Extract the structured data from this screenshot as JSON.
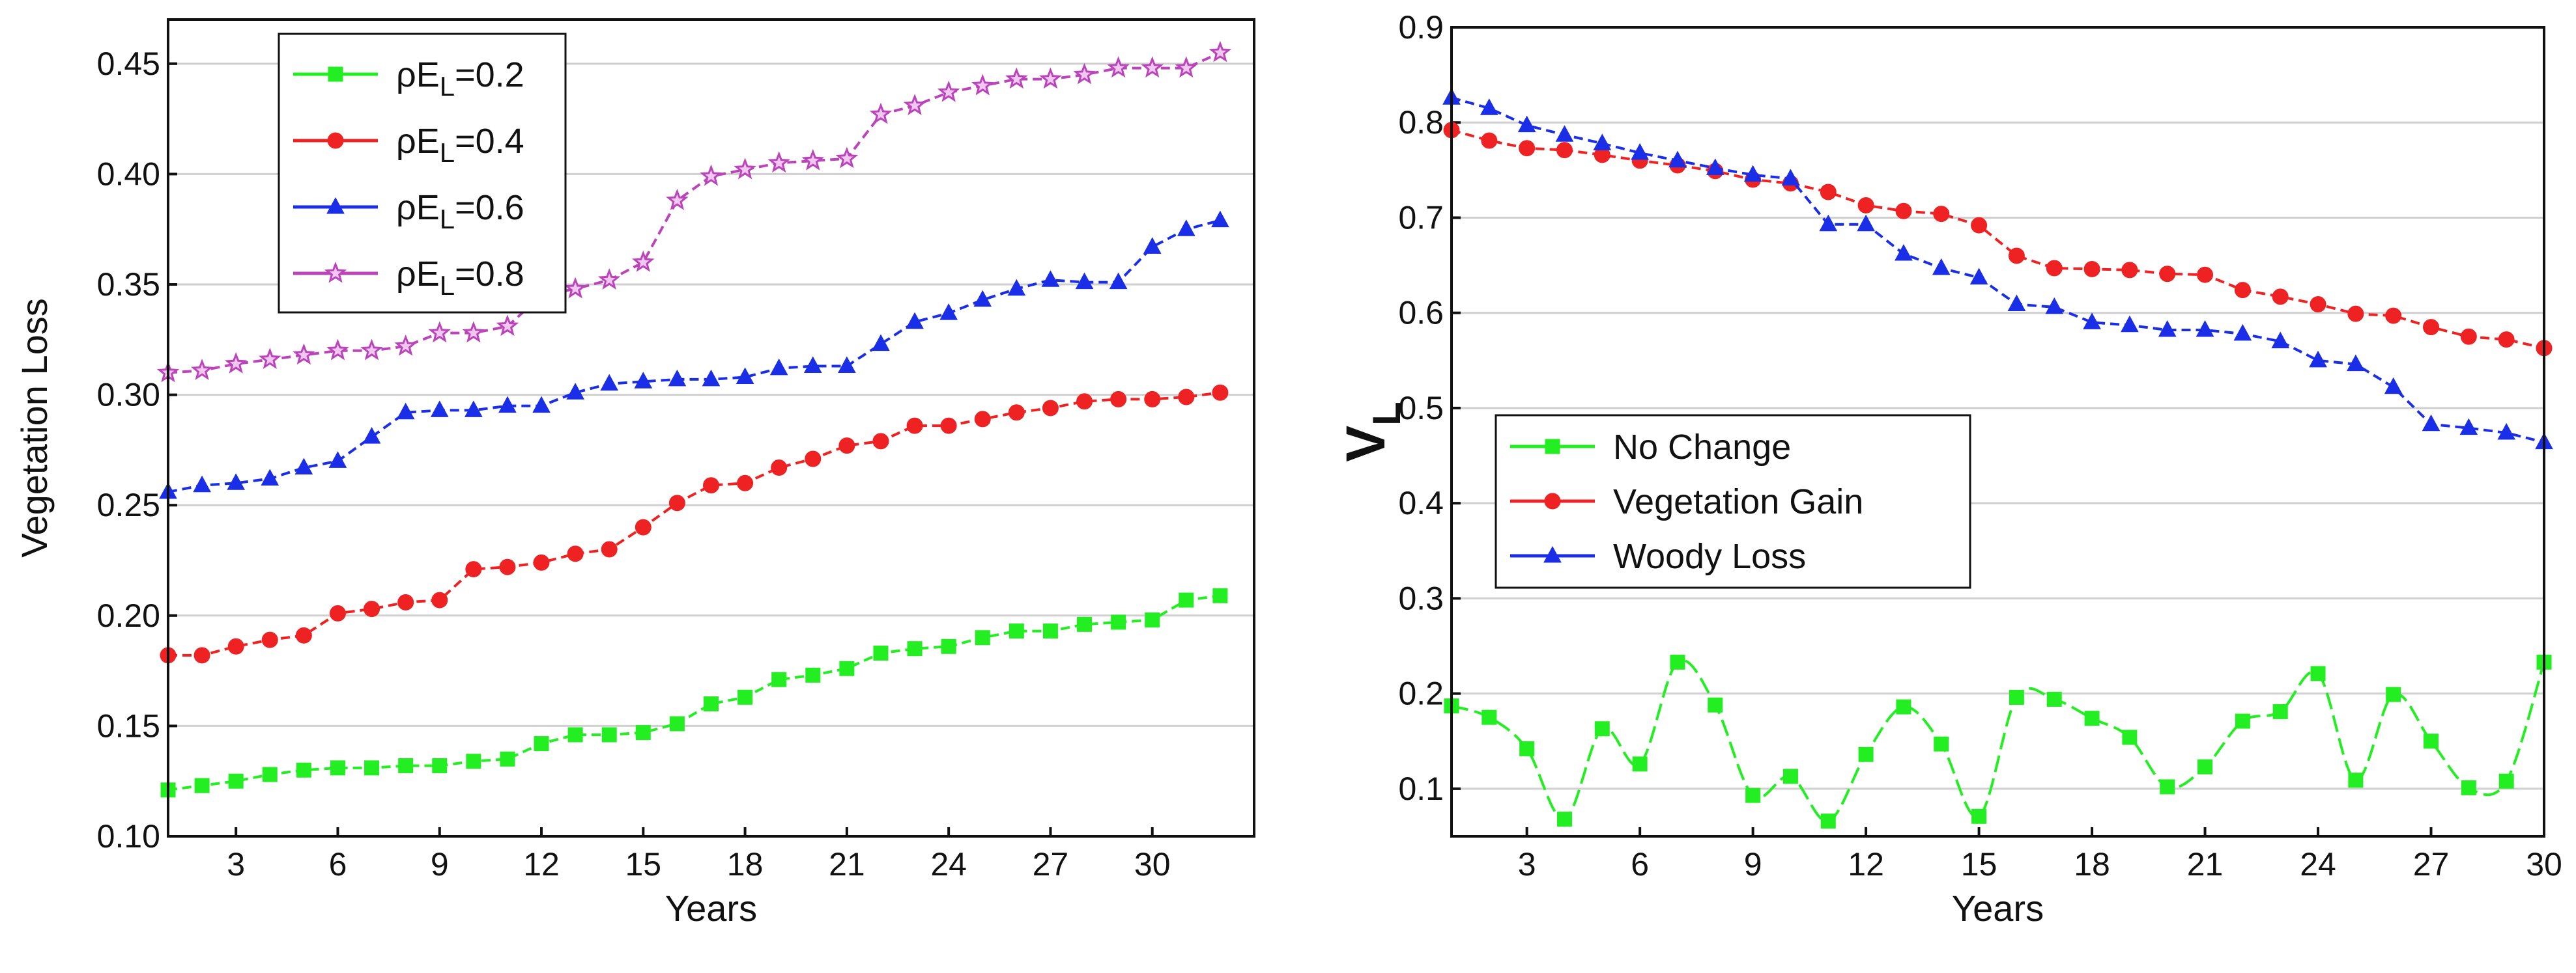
{
  "chart_data": [
    {
      "type": "line",
      "title": "",
      "xlabel": "Years",
      "ylabel": "Vegetation Loss",
      "xlim": [
        1,
        33
      ],
      "ylim": [
        0.1,
        0.47
      ],
      "xticks": [
        3,
        6,
        9,
        12,
        15,
        18,
        21,
        24,
        27,
        30
      ],
      "yticks": [
        0.1,
        0.15,
        0.2,
        0.25,
        0.3,
        0.35,
        0.4,
        0.45
      ],
      "ytick_labels": [
        "0.10",
        "0.15",
        "0.20",
        "0.25",
        "0.30",
        "0.35",
        "0.40",
        "0.45"
      ],
      "grid": true,
      "legend_position": "top-left",
      "x": [
        1,
        2,
        3,
        4,
        5,
        6,
        7,
        8,
        9,
        10,
        11,
        12,
        13,
        14,
        15,
        16,
        17,
        18,
        19,
        20,
        21,
        22,
        23,
        24,
        25,
        26,
        27,
        28,
        29,
        30,
        31,
        32
      ],
      "series": [
        {
          "name": "ρE_L=0.2",
          "legend_prefix": "ρE",
          "legend_sub": "L",
          "legend_suffix": "=0.2",
          "color": "#22ee22",
          "marker": "square",
          "dash": "14 8",
          "values": [
            0.121,
            0.123,
            0.125,
            0.128,
            0.13,
            0.131,
            0.131,
            0.132,
            0.132,
            0.134,
            0.135,
            0.142,
            0.146,
            0.146,
            0.147,
            0.151,
            0.16,
            0.163,
            0.171,
            0.173,
            0.176,
            0.183,
            0.185,
            0.186,
            0.19,
            0.193,
            0.193,
            0.196,
            0.197,
            0.198,
            0.207,
            0.209
          ]
        },
        {
          "name": "ρE_L=0.4",
          "legend_prefix": "ρE",
          "legend_sub": "L",
          "legend_suffix": "=0.4",
          "color": "#ee2222",
          "marker": "circle",
          "dash": "14 8",
          "values": [
            0.182,
            0.182,
            0.186,
            0.189,
            0.191,
            0.201,
            0.203,
            0.206,
            0.207,
            0.221,
            0.222,
            0.224,
            0.228,
            0.23,
            0.24,
            0.251,
            0.259,
            0.26,
            0.267,
            0.271,
            0.277,
            0.279,
            0.286,
            0.286,
            0.289,
            0.292,
            0.294,
            0.297,
            0.298,
            0.298,
            0.299,
            0.301
          ]
        },
        {
          "name": "ρE_L=0.6",
          "legend_prefix": "ρE",
          "legend_sub": "L",
          "legend_suffix": "=0.6",
          "color": "#1a2ee8",
          "marker": "triangle",
          "dash": "14 8",
          "values": [
            0.256,
            0.259,
            0.26,
            0.262,
            0.267,
            0.27,
            0.281,
            0.292,
            0.293,
            0.293,
            0.295,
            0.295,
            0.301,
            0.305,
            0.306,
            0.307,
            0.307,
            0.308,
            0.312,
            0.313,
            0.313,
            0.323,
            0.333,
            0.337,
            0.343,
            0.348,
            0.352,
            0.351,
            0.351,
            0.367,
            0.375,
            0.379
          ]
        },
        {
          "name": "ρE_L=0.8",
          "legend_prefix": "ρE",
          "legend_sub": "L",
          "legend_suffix": "=0.8",
          "color": "#bb44bb",
          "marker": "star",
          "dash": "14 8",
          "values": [
            0.31,
            0.311,
            0.314,
            0.316,
            0.318,
            0.32,
            0.32,
            0.322,
            0.328,
            0.328,
            0.331,
            0.345,
            0.348,
            0.352,
            0.36,
            0.388,
            0.399,
            0.402,
            0.405,
            0.406,
            0.407,
            0.427,
            0.431,
            0.437,
            0.44,
            0.443,
            0.443,
            0.445,
            0.448,
            0.448,
            0.448,
            0.455
          ]
        }
      ]
    },
    {
      "type": "line",
      "title": "",
      "xlabel": "Years",
      "ylabel_main": "V",
      "ylabel_sub": "L",
      "xlim": [
        1,
        30
      ],
      "ylim": [
        0.05,
        0.9
      ],
      "xticks": [
        3,
        6,
        9,
        12,
        15,
        18,
        21,
        24,
        27,
        30
      ],
      "yticks": [
        0.1,
        0.2,
        0.3,
        0.4,
        0.5,
        0.6,
        0.7,
        0.8,
        0.9
      ],
      "ytick_labels": [
        "0.1",
        "0.2",
        "0.3",
        "0.4",
        "0.5",
        "0.6",
        "0.7",
        "0.8",
        "0.9"
      ],
      "grid": true,
      "legend_position": "middle-left",
      "x": [
        1,
        2,
        3,
        4,
        5,
        6,
        7,
        8,
        9,
        10,
        11,
        12,
        13,
        14,
        15,
        16,
        17,
        18,
        19,
        20,
        21,
        22,
        23,
        24,
        25,
        26,
        27,
        28,
        29,
        30
      ],
      "series": [
        {
          "name": "No Change",
          "legend_prefix": "No Change",
          "legend_sub": "",
          "legend_suffix": "",
          "color": "#22ee22",
          "marker": "square",
          "dash": "26 10",
          "smooth": true,
          "values": [
            0.187,
            0.175,
            0.142,
            0.068,
            0.163,
            0.126,
            0.233,
            0.188,
            0.093,
            0.113,
            0.066,
            0.136,
            0.186,
            0.147,
            0.071,
            0.196,
            0.194,
            0.174,
            0.154,
            0.102,
            0.123,
            0.171,
            0.181,
            0.221,
            0.109,
            0.199,
            0.15,
            0.101,
            0.108,
            0.233
          ]
        },
        {
          "name": "Vegetation Gain",
          "legend_prefix": "Vegetation Gain",
          "legend_sub": "",
          "legend_suffix": "",
          "color": "#ee2222",
          "marker": "circle",
          "dash": "14 8",
          "values": [
            0.792,
            0.781,
            0.773,
            0.771,
            0.766,
            0.76,
            0.755,
            0.749,
            0.74,
            0.736,
            0.727,
            0.713,
            0.707,
            0.704,
            0.692,
            0.66,
            0.647,
            0.646,
            0.645,
            0.641,
            0.64,
            0.624,
            0.617,
            0.609,
            0.599,
            0.597,
            0.585,
            0.575,
            0.572,
            0.563
          ]
        },
        {
          "name": "Woody Loss",
          "legend_prefix": "Woody Loss",
          "legend_sub": "",
          "legend_suffix": "",
          "color": "#1a2ee8",
          "marker": "triangle",
          "dash": "14 8",
          "values": [
            0.826,
            0.815,
            0.797,
            0.787,
            0.778,
            0.768,
            0.76,
            0.752,
            0.745,
            0.741,
            0.693,
            0.693,
            0.662,
            0.647,
            0.637,
            0.609,
            0.606,
            0.59,
            0.587,
            0.582,
            0.582,
            0.578,
            0.57,
            0.55,
            0.546,
            0.522,
            0.483,
            0.479,
            0.474,
            0.464
          ]
        }
      ]
    }
  ]
}
